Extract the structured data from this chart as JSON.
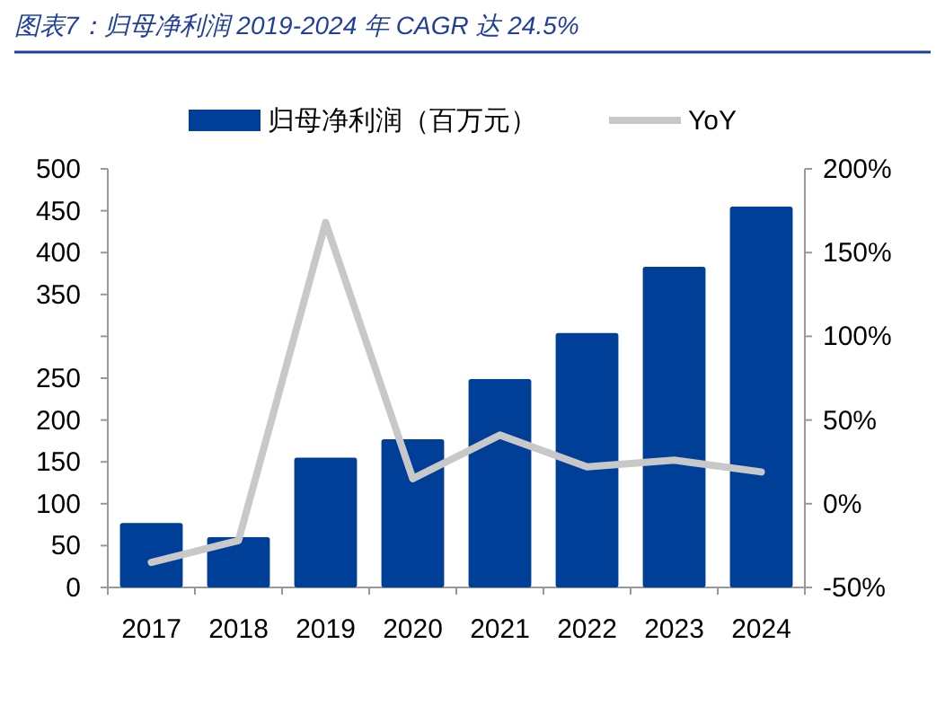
{
  "chart_data": {
    "type": "bar",
    "title": "图表7：归母净利润 2019-2024 年 CAGR 达 24.5%",
    "categories": [
      "2017",
      "2018",
      "2019",
      "2020",
      "2021",
      "2022",
      "2023",
      "2024"
    ],
    "series": [
      {
        "name": "归母净利润（百万元）",
        "color": "#003f98",
        "values": [
          77,
          60,
          155,
          177,
          249,
          304,
          383,
          455
        ]
      },
      {
        "name": "YoY",
        "type": "line",
        "axis": "y2",
        "color": "#c8c8c8",
        "values": [
          -35,
          -22,
          168,
          15,
          41,
          22,
          26,
          19
        ]
      }
    ],
    "ylim": [
      0,
      500
    ],
    "yticks": [
      0,
      50,
      100,
      150,
      200,
      250,
      {
        "value": 300,
        "label": null
      },
      350,
      400,
      450,
      500
    ],
    "y2lim": [
      -50,
      200
    ],
    "y2ticks": [
      {
        "value": -50,
        "label": "-50%"
      },
      {
        "value": 0,
        "label": "0%"
      },
      {
        "value": 50,
        "label": "50%"
      },
      {
        "value": 100,
        "label": "100%"
      },
      {
        "value": 150,
        "label": "150%"
      },
      {
        "value": 200,
        "label": "200%"
      }
    ],
    "legend": "top",
    "grid": false,
    "marker": "none",
    "line_style": "solid"
  }
}
